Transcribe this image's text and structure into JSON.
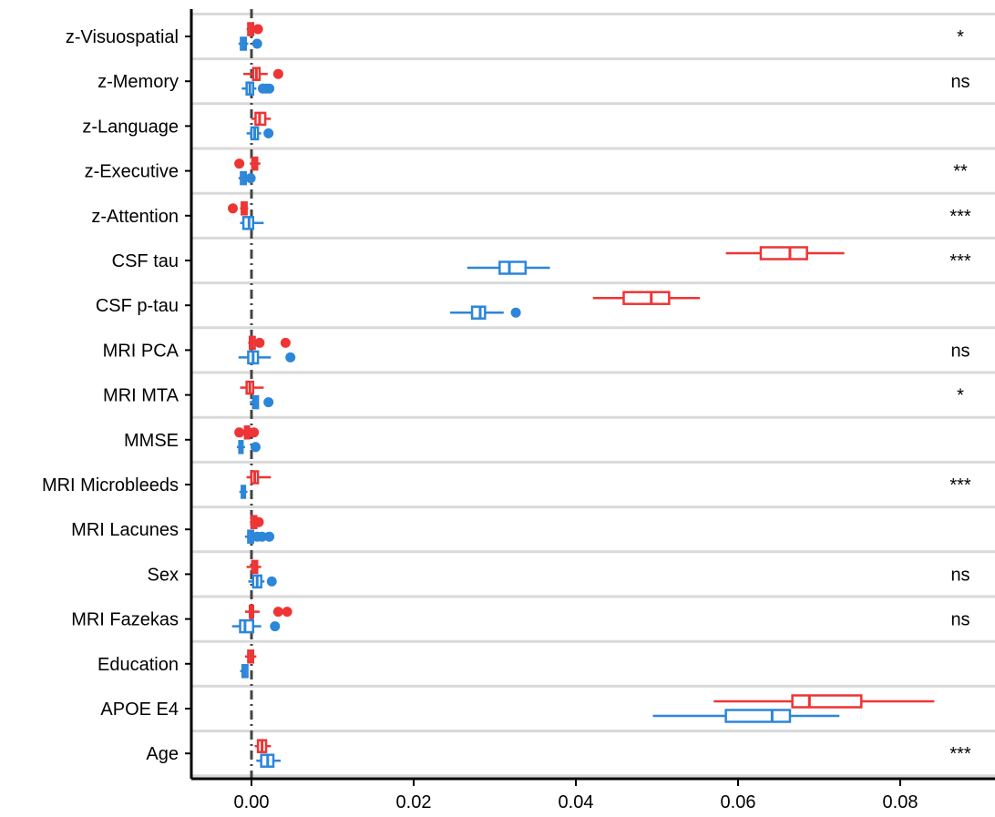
{
  "chart_data": {
    "type": "boxplot",
    "xlim": [
      -0.0075,
      0.09
    ],
    "x_ticks": [
      0.0,
      0.02,
      0.04,
      0.06,
      0.08
    ],
    "x_tick_labels": [
      "0.00",
      "0.02",
      "0.04",
      "0.06",
      "0.08"
    ],
    "reference_line_x": 0,
    "grid": "horizontal-bands",
    "colors": {
      "group_a": "#EE3434",
      "group_b": "#2C86D9"
    },
    "rows": [
      {
        "label": "z-Visuospatial",
        "sig": "*",
        "a": {
          "whisker": [
            -0.0006,
            0.0004
          ],
          "box": [
            -0.0004,
            0.0002
          ],
          "median": -0.0001,
          "outliers": [
            0.0008
          ]
        },
        "b": {
          "whisker": [
            -0.0016,
            -0.0004
          ],
          "box": [
            -0.0013,
            -0.0007
          ],
          "median": -0.001,
          "outliers": [
            0.0007
          ]
        }
      },
      {
        "label": "z-Memory",
        "sig": "ns",
        "a": {
          "whisker": [
            -0.001,
            0.002
          ],
          "box": [
            0.0002,
            0.001
          ],
          "median": 0.0006,
          "outliers": [
            0.0033
          ]
        },
        "b": {
          "whisker": [
            -0.0012,
            0.0006
          ],
          "box": [
            -0.0006,
            0.0002
          ],
          "median": -0.0002,
          "outliers": [
            0.0014,
            0.0018,
            0.0022
          ]
        }
      },
      {
        "label": "z-Language",
        "sig": "",
        "a": {
          "whisker": [
            0.0,
            0.0024
          ],
          "box": [
            0.0005,
            0.0017
          ],
          "median": 0.001,
          "outliers": []
        },
        "b": {
          "whisker": [
            -0.0006,
            0.0012
          ],
          "box": [
            0.0,
            0.0008
          ],
          "median": 0.0004,
          "outliers": [
            0.0021
          ]
        }
      },
      {
        "label": "z-Executive",
        "sig": "**",
        "a": {
          "whisker": [
            -0.0002,
            0.0011
          ],
          "box": [
            0.0001,
            0.0007
          ],
          "median": 0.0004,
          "outliers": [
            -0.0015
          ]
        },
        "b": {
          "whisker": [
            -0.0016,
            -0.0004
          ],
          "box": [
            -0.0013,
            -0.0007
          ],
          "median": -0.001,
          "outliers": [
            -0.0001
          ]
        }
      },
      {
        "label": "z-Attention",
        "sig": "***",
        "a": {
          "whisker": [
            -0.0014,
            -0.0004
          ],
          "box": [
            -0.0012,
            -0.0006
          ],
          "median": -0.0009,
          "outliers": [
            -0.0023
          ]
        },
        "b": {
          "whisker": [
            -0.0014,
            0.0015
          ],
          "box": [
            -0.001,
            0.0002
          ],
          "median": -0.0003,
          "outliers": []
        }
      },
      {
        "label": "CSF tau",
        "sig": "***",
        "a": {
          "whisker": [
            0.0585,
            0.0731
          ],
          "box": [
            0.0628,
            0.0685
          ],
          "median": 0.0664,
          "outliers": []
        },
        "b": {
          "whisker": [
            0.0266,
            0.0368
          ],
          "box": [
            0.0306,
            0.0338
          ],
          "median": 0.0318,
          "outliers": []
        }
      },
      {
        "label": "CSF p-tau",
        "sig": "",
        "a": {
          "whisker": [
            0.0421,
            0.0553
          ],
          "box": [
            0.0459,
            0.0515
          ],
          "median": 0.0493,
          "outliers": []
        },
        "b": {
          "whisker": [
            0.0245,
            0.0311
          ],
          "box": [
            0.0272,
            0.0288
          ],
          "median": 0.0282,
          "outliers": [
            0.0326
          ]
        }
      },
      {
        "label": "MRI PCA",
        "sig": "ns",
        "a": {
          "whisker": [
            -0.0004,
            0.0006
          ],
          "box": [
            -0.0002,
            0.0004
          ],
          "median": 0.0001,
          "outliers": [
            0.001,
            0.0042
          ]
        },
        "b": {
          "whisker": [
            -0.0016,
            0.0024
          ],
          "box": [
            -0.0004,
            0.0008
          ],
          "median": 0.0002,
          "outliers": [
            0.0048
          ]
        }
      },
      {
        "label": "MRI MTA",
        "sig": "*",
        "a": {
          "whisker": [
            -0.0014,
            0.0015
          ],
          "box": [
            -0.0006,
            0.0002
          ],
          "median": -0.0002,
          "outliers": []
        },
        "b": {
          "whisker": [
            -0.0002,
            0.0008
          ],
          "box": [
            0.0002,
            0.0008
          ],
          "median": 0.0005,
          "outliers": [
            0.0021
          ]
        }
      },
      {
        "label": "MMSE",
        "sig": "",
        "a": {
          "whisker": [
            -0.0011,
            -0.0001
          ],
          "box": [
            -0.0008,
            -0.0003
          ],
          "median": -0.0005,
          "outliers": [
            -0.0015,
            -0.0004,
            0.0003
          ]
        },
        "b": {
          "whisker": [
            -0.0018,
            -0.0008
          ],
          "box": [
            -0.0015,
            -0.0011
          ],
          "median": -0.0013,
          "outliers": [
            0.0005
          ]
        }
      },
      {
        "label": "MRI Microbleeds",
        "sig": "***",
        "a": {
          "whisker": [
            -0.0006,
            0.0024
          ],
          "box": [
            0.0,
            0.0008
          ],
          "median": 0.0004,
          "outliers": []
        },
        "b": {
          "whisker": [
            -0.0015,
            -0.0005
          ],
          "box": [
            -0.0012,
            -0.0008
          ],
          "median": -0.001,
          "outliers": []
        }
      },
      {
        "label": "MRI Lacunes",
        "sig": "",
        "a": {
          "whisker": [
            -0.0002,
            0.0008
          ],
          "box": [
            0.0,
            0.0006
          ],
          "median": 0.0003,
          "outliers": [
            0.0009
          ]
        },
        "b": {
          "whisker": [
            -0.0008,
            0.0004
          ],
          "box": [
            -0.0004,
            0.0002
          ],
          "median": -0.0001,
          "outliers": [
            0.0007,
            0.0013,
            0.0022
          ]
        }
      },
      {
        "label": "Sex",
        "sig": "ns",
        "a": {
          "whisker": [
            -0.0006,
            0.0012
          ],
          "box": [
            0.0001,
            0.0007
          ],
          "median": 0.0004,
          "outliers": []
        },
        "b": {
          "whisker": [
            -0.0004,
            0.0016
          ],
          "box": [
            0.0002,
            0.0012
          ],
          "median": 0.0007,
          "outliers": [
            0.0025
          ]
        }
      },
      {
        "label": "MRI Fazekas",
        "sig": "ns",
        "a": {
          "whisker": [
            -0.0008,
            0.001
          ],
          "box": [
            -0.0002,
            0.0002
          ],
          "median": 0.0,
          "outliers": [
            0.0033,
            0.0044
          ]
        },
        "b": {
          "whisker": [
            -0.0024,
            0.0012
          ],
          "box": [
            -0.0014,
            0.0002
          ],
          "median": -0.0008,
          "outliers": [
            0.0029
          ]
        }
      },
      {
        "label": "Education",
        "sig": "",
        "a": {
          "whisker": [
            -0.0008,
            0.0006
          ],
          "box": [
            -0.0004,
            0.0002
          ],
          "median": -0.0001,
          "outliers": []
        },
        "b": {
          "whisker": [
            -0.0014,
            -0.0004
          ],
          "box": [
            -0.0011,
            -0.0005
          ],
          "median": -0.0008,
          "outliers": []
        }
      },
      {
        "label": "APOE E4",
        "sig": "",
        "a": {
          "whisker": [
            0.057,
            0.0842
          ],
          "box": [
            0.0667,
            0.0752
          ],
          "median": 0.0688,
          "outliers": []
        },
        "b": {
          "whisker": [
            0.0495,
            0.0725
          ],
          "box": [
            0.0585,
            0.0664
          ],
          "median": 0.0642,
          "outliers": []
        }
      },
      {
        "label": "Age",
        "sig": "***",
        "a": {
          "whisker": [
            0.0004,
            0.0024
          ],
          "box": [
            0.0008,
            0.0018
          ],
          "median": 0.0013,
          "outliers": []
        },
        "b": {
          "whisker": [
            0.0006,
            0.0036
          ],
          "box": [
            0.0012,
            0.0027
          ],
          "median": 0.002,
          "outliers": []
        }
      }
    ]
  }
}
